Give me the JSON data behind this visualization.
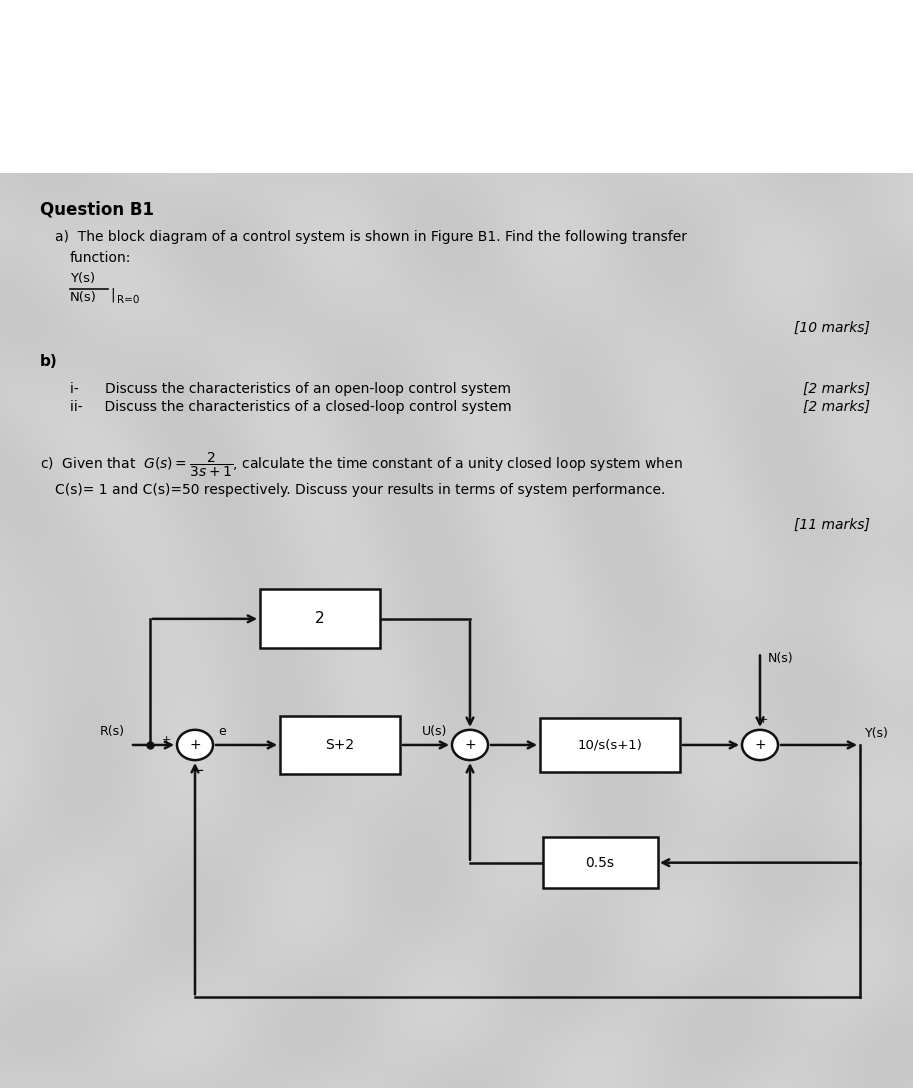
{
  "bg_color": "#c8c8c8",
  "text_color": "#000000",
  "title": "Question B1",
  "fig_width": 9.13,
  "fig_height": 10.88,
  "dpi": 100,
  "block_labels": {
    "b_top": "2",
    "b_ctrl": "S+2",
    "b_plant": "10/s(s+1)",
    "b_fb": "0.5s"
  },
  "signal_labels": {
    "R": "R(s)",
    "e": "e",
    "U": "U(s)",
    "N": "N(s)",
    "Y": "Y(s)"
  },
  "marks": {
    "a": "[10 marks]",
    "b_i": "[2 marks]",
    "b_ii": "[2 marks]",
    "c": "[11 marks]"
  }
}
